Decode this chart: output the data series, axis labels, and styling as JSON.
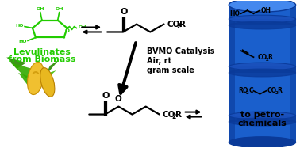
{
  "bg_color": "#ffffff",
  "green_color": "#22cc00",
  "black_color": "#000000",
  "blue_color": "#1a5fcc",
  "blue_dark": "#0a3a99",
  "blue_mid": "#1a50bb",
  "text_bvmo_line1": "BVMO Catalysis",
  "text_bvmo_line2": "Air, rt",
  "text_bvmo_line3": "gram scale",
  "text_left1": "Levulinates",
  "text_left2": "from Biomass",
  "text_right1": "to petro-",
  "text_right2": "chemicals",
  "figw": 3.78,
  "figh": 1.87,
  "dpi": 100
}
